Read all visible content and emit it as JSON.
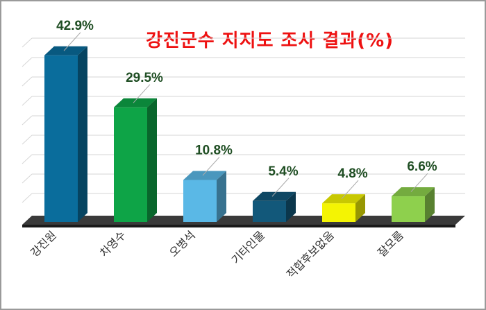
{
  "chart_data": {
    "type": "bar",
    "title": "강진군수 지지도 조사 결과(%)",
    "categories": [
      "강진원",
      "차영수",
      "오병석",
      "기타인물",
      "적합후보없음",
      "잘모름"
    ],
    "values": [
      42.9,
      29.5,
      10.8,
      5.4,
      4.8,
      6.6
    ],
    "value_labels": [
      "42.9%",
      "29.5%",
      "10.8%",
      "5.4%",
      "4.8%",
      "6.6%"
    ],
    "colors": [
      "#0a6d9c",
      "#0ea447",
      "#5ab8e6",
      "#12587a",
      "#f4f403",
      "#8ed04d"
    ],
    "ylim": [
      0,
      45
    ],
    "grid": true,
    "legend": "none"
  }
}
